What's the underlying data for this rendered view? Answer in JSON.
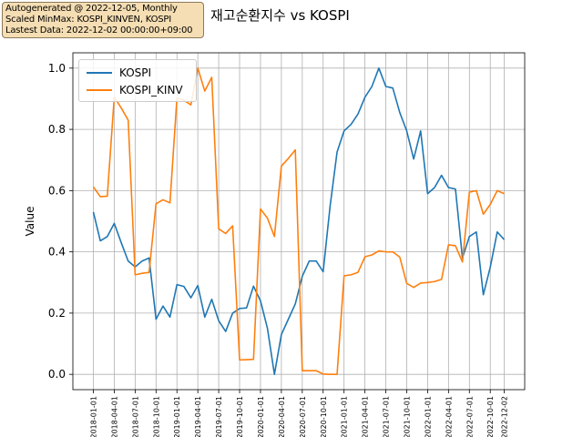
{
  "info_box": {
    "lines": [
      "Autogenerated @ 2022-12-05, Monthly",
      "Scaled MinMax: KOSPI_KINVEN, KOSPI",
      "Lastest Data: 2022-12-02 00:00:00+09:00"
    ]
  },
  "chart_data": {
    "type": "line",
    "title": "재고순환지수 vs KOSPI",
    "xlabel": "",
    "ylabel": "Value",
    "ylim": [
      -0.05,
      1.05
    ],
    "y_ticks": [
      "0.0",
      "0.2",
      "0.4",
      "0.6",
      "0.8",
      "1.0"
    ],
    "x_tick_labels": [
      "2018-01-01",
      "2018-04-01",
      "2018-07-01",
      "2018-10-01",
      "2019-01-01",
      "2019-04-01",
      "2019-07-01",
      "2019-10-01",
      "2020-01-01",
      "2020-04-01",
      "2020-07-01",
      "2020-10-01",
      "2021-01-01",
      "2021-04-01",
      "2021-07-01",
      "2021-10-01",
      "2022-01-01",
      "2022-04-01",
      "2022-07-01",
      "2022-10-01",
      "2022-12-02"
    ],
    "x_tick_index": [
      0,
      3,
      6,
      9,
      12,
      15,
      18,
      21,
      24,
      27,
      30,
      33,
      36,
      39,
      42,
      45,
      48,
      51,
      54,
      57,
      59
    ],
    "grid": true,
    "legend_position": "top-left",
    "series": [
      {
        "name": "KOSPI",
        "color": "#1f77b4",
        "values": [
          0.53,
          0.436,
          0.45,
          0.493,
          0.43,
          0.37,
          0.351,
          0.37,
          0.38,
          0.18,
          0.223,
          0.187,
          0.293,
          0.287,
          0.25,
          0.29,
          0.187,
          0.245,
          0.175,
          0.14,
          0.2,
          0.215,
          0.217,
          0.288,
          0.24,
          0.15,
          0.0,
          0.13,
          0.18,
          0.23,
          0.32,
          0.37,
          0.37,
          0.335,
          0.55,
          0.726,
          0.795,
          0.816,
          0.85,
          0.905,
          0.94,
          1.0,
          0.94,
          0.935,
          0.855,
          0.795,
          0.703,
          0.795,
          0.59,
          0.61,
          0.65,
          0.61,
          0.605,
          0.38,
          0.45,
          0.465,
          0.26,
          0.35,
          0.465,
          0.44
        ]
      },
      {
        "name": "KOSPI_KINV",
        "color": "#ff7f0e",
        "values": [
          0.612,
          0.58,
          0.582,
          0.905,
          0.87,
          0.83,
          0.325,
          0.33,
          0.333,
          0.557,
          0.57,
          0.56,
          0.902,
          0.895,
          0.88,
          1.0,
          0.925,
          0.97,
          0.475,
          0.46,
          0.485,
          0.047,
          0.048,
          0.049,
          0.54,
          0.51,
          0.45,
          0.68,
          0.705,
          0.733,
          0.012,
          0.012,
          0.012,
          0.001,
          0.0,
          0.0,
          0.322,
          0.325,
          0.333,
          0.384,
          0.39,
          0.403,
          0.4,
          0.4,
          0.383,
          0.297,
          0.284,
          0.298,
          0.3,
          0.303,
          0.31,
          0.423,
          0.42,
          0.367,
          0.595,
          0.6,
          0.523,
          0.555,
          0.6,
          0.59
        ]
      }
    ]
  }
}
